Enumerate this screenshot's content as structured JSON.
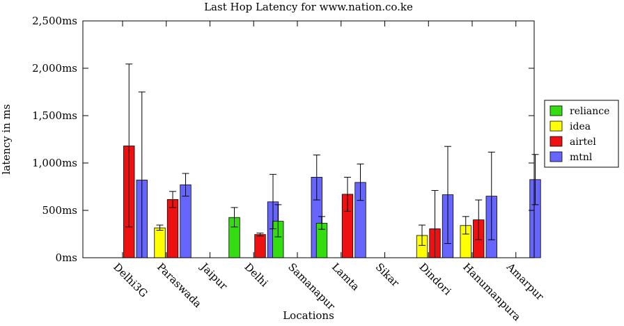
{
  "chart_data": {
    "type": "bar",
    "title": "Last Hop Latency for www.nation.co.ke",
    "xlabel": "Locations",
    "ylabel": "latency in ms",
    "ylim": [
      0,
      2500
    ],
    "yticks": [
      0,
      500,
      1000,
      1500,
      2000,
      2500
    ],
    "ytick_labels": [
      "0ms",
      "500ms",
      "1,000ms",
      "1,500ms",
      "2,000ms",
      "2,500ms"
    ],
    "grid": false,
    "legend_position": "right",
    "categories": [
      "Delhi3G",
      "Paraswada",
      "Jaipur",
      "Delhi",
      "Samanapur",
      "Lamta",
      "Sikar",
      "Dindori",
      "Hanumanpura",
      "Amarpur"
    ],
    "series": [
      {
        "name": "reliance",
        "color": "#33dd11",
        "values": [
          null,
          null,
          null,
          425,
          385,
          365,
          null,
          null,
          null,
          null
        ],
        "err_low": [
          null,
          null,
          null,
          325,
          220,
          300,
          null,
          null,
          null,
          null
        ],
        "err_high": [
          null,
          null,
          null,
          530,
          560,
          435,
          null,
          null,
          null,
          null
        ]
      },
      {
        "name": "idea",
        "color": "#ffff00",
        "values": [
          null,
          315,
          null,
          null,
          null,
          null,
          null,
          235,
          340,
          null
        ],
        "err_low": [
          null,
          290,
          null,
          null,
          null,
          null,
          null,
          130,
          250,
          null
        ],
        "err_high": [
          null,
          345,
          null,
          null,
          null,
          null,
          null,
          345,
          435,
          null
        ]
      },
      {
        "name": "airtel",
        "color": "#ee1111",
        "values": [
          1180,
          615,
          null,
          245,
          null,
          670,
          null,
          305,
          400,
          null
        ],
        "err_low": [
          325,
          530,
          null,
          230,
          null,
          490,
          null,
          0,
          190,
          null
        ],
        "err_high": [
          2045,
          700,
          null,
          260,
          null,
          850,
          null,
          710,
          610,
          null
        ]
      },
      {
        "name": "mtnl",
        "color": "#6666ff",
        "values": [
          820,
          770,
          null,
          590,
          850,
          795,
          null,
          665,
          650,
          825
        ],
        "err_low": [
          0,
          650,
          null,
          305,
          610,
          605,
          null,
          150,
          190,
          560
        ],
        "err_high": [
          1750,
          890,
          null,
          880,
          1085,
          990,
          null,
          1175,
          1115,
          1090
        ]
      }
    ]
  }
}
